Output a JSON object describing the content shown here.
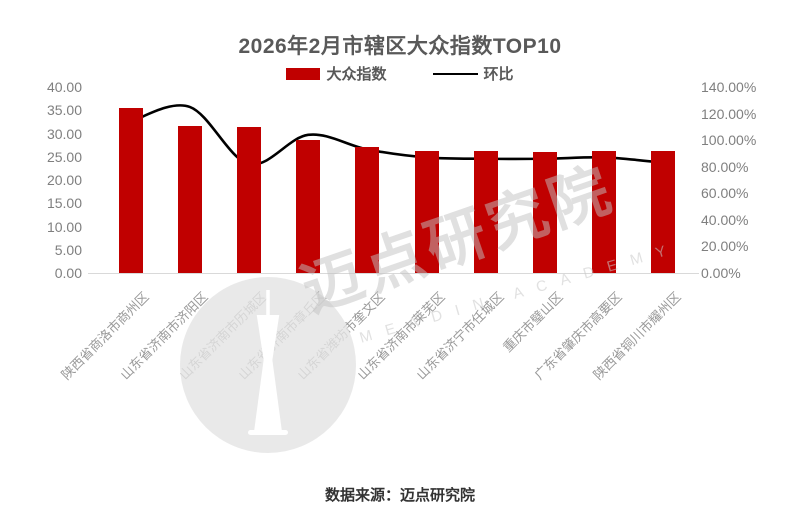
{
  "title": "2026年2月市辖区大众指数TOP10",
  "legend": [
    {
      "label": "大众指数",
      "type": "bar",
      "color": "#c00000"
    },
    {
      "label": "环比",
      "type": "line",
      "color": "#000000"
    }
  ],
  "source_note": "数据来源：迈点研究院",
  "watermark": {
    "cn": "迈点研究院",
    "en": "MEADIN ACADEMY"
  },
  "chart_data": {
    "type": "bar",
    "title": "2026年2月市辖区大众指数TOP10",
    "categories": [
      "陕西省商洛市商州区",
      "山东省济南市济阳区",
      "山东省济南市历城区",
      "山东省济南市章丘区",
      "山东省潍坊市奎文区",
      "山东省济南市莱芜区",
      "山东省济宁市任城区",
      "重庆市璧山区",
      "广东省肇庆市高要区",
      "陕西省铜川市耀州区"
    ],
    "series": [
      {
        "name": "大众指数",
        "type": "bar",
        "axis": "left",
        "color": "#c00000",
        "values": [
          35.4,
          31.6,
          31.5,
          28.6,
          27.2,
          26.3,
          26.2,
          26.1,
          26.3,
          26.2
        ]
      },
      {
        "name": "环比",
        "type": "line",
        "axis": "right",
        "color": "#000000",
        "values_pct": [
          114,
          125,
          82,
          104,
          93,
          87,
          86,
          86,
          87,
          83
        ]
      }
    ],
    "left_axis": {
      "min": 0,
      "max": 40,
      "step": 5,
      "tick_labels": [
        "40.00",
        "35.00",
        "30.00",
        "25.00",
        "20.00",
        "15.00",
        "10.00",
        "5.00",
        "0.00"
      ]
    },
    "right_axis": {
      "min": 0,
      "max": 140,
      "step": 20,
      "tick_labels": [
        "140.00%",
        "120.00%",
        "100.00%",
        "80.00%",
        "60.00%",
        "40.00%",
        "20.00%",
        "0.00%"
      ]
    },
    "grid": false,
    "legend_position": "top"
  }
}
